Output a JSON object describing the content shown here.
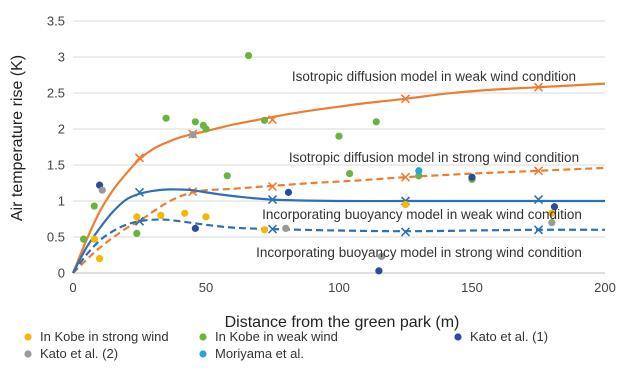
{
  "chart_data": {
    "type": "scatter",
    "title": "",
    "xlabel": "Distance from the green park (m)",
    "ylabel": "Air temperature rise (K)",
    "xlim": [
      0,
      200
    ],
    "ylim": [
      0,
      3.5
    ],
    "x_ticks": [
      "0",
      "50",
      "100",
      "150",
      "200"
    ],
    "y_ticks": [
      "0",
      "0.5",
      "1",
      "1.5",
      "2",
      "2.5",
      "3",
      "3.5"
    ],
    "grid": "horizontal",
    "legend_position": "bottom",
    "series": [
      {
        "name": "In Kobe in strong wind",
        "color": "#f5b800",
        "points": [
          [
            4,
            0.47
          ],
          [
            8,
            0.47
          ],
          [
            10,
            0.2
          ],
          [
            24,
            0.78
          ],
          [
            33,
            0.8
          ],
          [
            42,
            0.83
          ],
          [
            50,
            0.78
          ],
          [
            72,
            0.6
          ],
          [
            80,
            0.62
          ],
          [
            125,
            0.95
          ],
          [
            180,
            0.83
          ]
        ]
      },
      {
        "name": "In Kobe in weak wind",
        "color": "#6ab33e",
        "points": [
          [
            4,
            0.47
          ],
          [
            8,
            0.93
          ],
          [
            24,
            0.55
          ],
          [
            35,
            2.15
          ],
          [
            46,
            2.1
          ],
          [
            49,
            2.05
          ],
          [
            50,
            2.0
          ],
          [
            58,
            1.35
          ],
          [
            66,
            3.02
          ],
          [
            72,
            2.12
          ],
          [
            100,
            1.9
          ],
          [
            104,
            1.38
          ],
          [
            114,
            2.1
          ],
          [
            130,
            1.35
          ],
          [
            150,
            1.3
          ]
        ]
      },
      {
        "name": "Kato et al. (1)",
        "color": "#2e4a9e",
        "points": [
          [
            10,
            1.22
          ],
          [
            46,
            0.62
          ],
          [
            81,
            1.12
          ],
          [
            115,
            0.03
          ],
          [
            150,
            1.33
          ],
          [
            181,
            0.92
          ]
        ]
      },
      {
        "name": "Kato et al. (2)",
        "color": "#9a9a9a",
        "points": [
          [
            11,
            1.15
          ],
          [
            45,
            1.92
          ],
          [
            80,
            0.62
          ],
          [
            116,
            0.23
          ],
          [
            180,
            0.7
          ]
        ]
      },
      {
        "name": "Moriyama et al.",
        "color": "#29a6d9",
        "points": [
          [
            130,
            1.42
          ]
        ]
      }
    ],
    "model_lines": [
      {
        "label": "Isotropic diffusion model in weak wind condition",
        "color": "#ed7d31",
        "dash": "solid",
        "markers": [
          [
            25,
            1.6
          ],
          [
            45,
            1.93
          ],
          [
            75,
            2.13
          ],
          [
            125,
            2.42
          ],
          [
            175,
            2.58
          ]
        ],
        "curve": [
          [
            0,
            0
          ],
          [
            5,
            0.45
          ],
          [
            10,
            0.85
          ],
          [
            15,
            1.15
          ],
          [
            20,
            1.38
          ],
          [
            25,
            1.58
          ],
          [
            30,
            1.72
          ],
          [
            35,
            1.81
          ],
          [
            40,
            1.88
          ],
          [
            45,
            1.93
          ],
          [
            50,
            1.97
          ],
          [
            60,
            2.06
          ],
          [
            70,
            2.13
          ],
          [
            80,
            2.2
          ],
          [
            90,
            2.26
          ],
          [
            100,
            2.31
          ],
          [
            110,
            2.36
          ],
          [
            125,
            2.42
          ],
          [
            140,
            2.49
          ],
          [
            155,
            2.54
          ],
          [
            175,
            2.58
          ],
          [
            200,
            2.63
          ]
        ]
      },
      {
        "label": "Isotropic diffusion model in strong wind condition",
        "color": "#ed7d31",
        "dash": "dashed",
        "markers": [
          [
            25,
            0.72
          ],
          [
            45,
            1.13
          ],
          [
            75,
            1.2
          ],
          [
            125,
            1.33
          ],
          [
            175,
            1.42
          ]
        ],
        "curve": [
          [
            0,
            0
          ],
          [
            10,
            0.35
          ],
          [
            20,
            0.62
          ],
          [
            25,
            0.72
          ],
          [
            30,
            0.85
          ],
          [
            35,
            0.97
          ],
          [
            40,
            1.06
          ],
          [
            45,
            1.12
          ],
          [
            50,
            1.15
          ],
          [
            60,
            1.17
          ],
          [
            75,
            1.21
          ],
          [
            90,
            1.25
          ],
          [
            105,
            1.28
          ],
          [
            125,
            1.33
          ],
          [
            150,
            1.38
          ],
          [
            175,
            1.42
          ],
          [
            200,
            1.46
          ]
        ]
      },
      {
        "label": "Incorporating buoyancy model in weak wind condition",
        "color": "#2f6fb7",
        "dash": "solid",
        "markers": [
          [
            25,
            1.12
          ],
          [
            75,
            1.02
          ],
          [
            125,
            1.0
          ],
          [
            175,
            1.02
          ]
        ],
        "curve": [
          [
            0,
            0
          ],
          [
            5,
            0.35
          ],
          [
            10,
            0.62
          ],
          [
            15,
            0.85
          ],
          [
            20,
            1.02
          ],
          [
            25,
            1.1
          ],
          [
            30,
            1.14
          ],
          [
            35,
            1.16
          ],
          [
            40,
            1.16
          ],
          [
            45,
            1.15
          ],
          [
            50,
            1.12
          ],
          [
            60,
            1.07
          ],
          [
            75,
            1.02
          ],
          [
            100,
            1.0
          ],
          [
            125,
            1.0
          ],
          [
            150,
            1.0
          ],
          [
            175,
            1.0
          ],
          [
            200,
            1.0
          ]
        ]
      },
      {
        "label": "Incorporating buoyancy model in strong wind condition",
        "color": "#2f6fb7",
        "dash": "dashed",
        "markers": [
          [
            25,
            0.72
          ],
          [
            75,
            0.61
          ],
          [
            125,
            0.57
          ],
          [
            175,
            0.6
          ]
        ],
        "curve": [
          [
            0,
            0
          ],
          [
            5,
            0.25
          ],
          [
            10,
            0.45
          ],
          [
            15,
            0.58
          ],
          [
            20,
            0.67
          ],
          [
            25,
            0.72
          ],
          [
            30,
            0.74
          ],
          [
            35,
            0.74
          ],
          [
            40,
            0.72
          ],
          [
            50,
            0.67
          ],
          [
            60,
            0.63
          ],
          [
            75,
            0.61
          ],
          [
            100,
            0.59
          ],
          [
            125,
            0.58
          ],
          [
            150,
            0.59
          ],
          [
            175,
            0.6
          ],
          [
            200,
            0.6
          ]
        ]
      }
    ]
  }
}
